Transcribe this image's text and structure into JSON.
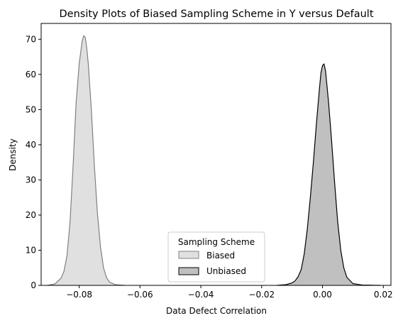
{
  "chart_data": {
    "type": "area",
    "title": "Density Plots of Biased Sampling Scheme in Y versus Default",
    "xlabel": "Data Defect Correlation",
    "ylabel": "Density",
    "xlim": [
      -0.0925,
      0.0225
    ],
    "ylim": [
      0,
      74.5
    ],
    "xticks": [
      -0.08,
      -0.06,
      -0.04,
      -0.02,
      0.0,
      0.02
    ],
    "xtick_labels": [
      "−0.08",
      "−0.06",
      "−0.04",
      "−0.02",
      "0.00",
      "0.02"
    ],
    "yticks": [
      0,
      10,
      20,
      30,
      40,
      50,
      60,
      70
    ],
    "ytick_labels": [
      "0",
      "10",
      "20",
      "30",
      "40",
      "50",
      "60",
      "70"
    ],
    "grid": false,
    "legend": {
      "title": "Sampling Scheme",
      "placement": "bottom-center"
    },
    "series": [
      {
        "name": "Biased",
        "fill": "#e0e0e0",
        "stroke": "#808080",
        "x": [
          -0.0905,
          -0.088,
          -0.086,
          -0.085,
          -0.084,
          -0.083,
          -0.082,
          -0.081,
          -0.08,
          -0.079,
          -0.0785,
          -0.078,
          -0.0775,
          -0.077,
          -0.076,
          -0.075,
          -0.074,
          -0.073,
          -0.072,
          -0.071,
          -0.07,
          -0.068,
          -0.065
        ],
        "y": [
          0,
          0.4,
          2.0,
          4.0,
          8.5,
          18.0,
          34.0,
          52.0,
          63.0,
          69.5,
          71.0,
          70.5,
          67.5,
          63.0,
          50.0,
          34.0,
          20.5,
          11.0,
          5.0,
          2.2,
          0.9,
          0.2,
          0
        ]
      },
      {
        "name": "Unbiased",
        "fill": "#c0c0c0",
        "stroke": "#000000",
        "x": [
          -0.015,
          -0.012,
          -0.01,
          -0.009,
          -0.008,
          -0.007,
          -0.006,
          -0.005,
          -0.004,
          -0.003,
          -0.002,
          -0.001,
          -0.0005,
          0.0,
          0.0005,
          0.001,
          0.002,
          0.003,
          0.004,
          0.005,
          0.006,
          0.007,
          0.008,
          0.01,
          0.013,
          0.019
        ],
        "y": [
          0,
          0.2,
          0.7,
          1.3,
          2.5,
          4.5,
          9.0,
          16.0,
          25.0,
          35.0,
          46.0,
          56.0,
          60.5,
          62.5,
          63.0,
          61.0,
          52.0,
          41.0,
          29.0,
          18.0,
          10.0,
          5.0,
          2.3,
          0.5,
          0.1,
          0
        ]
      }
    ]
  }
}
